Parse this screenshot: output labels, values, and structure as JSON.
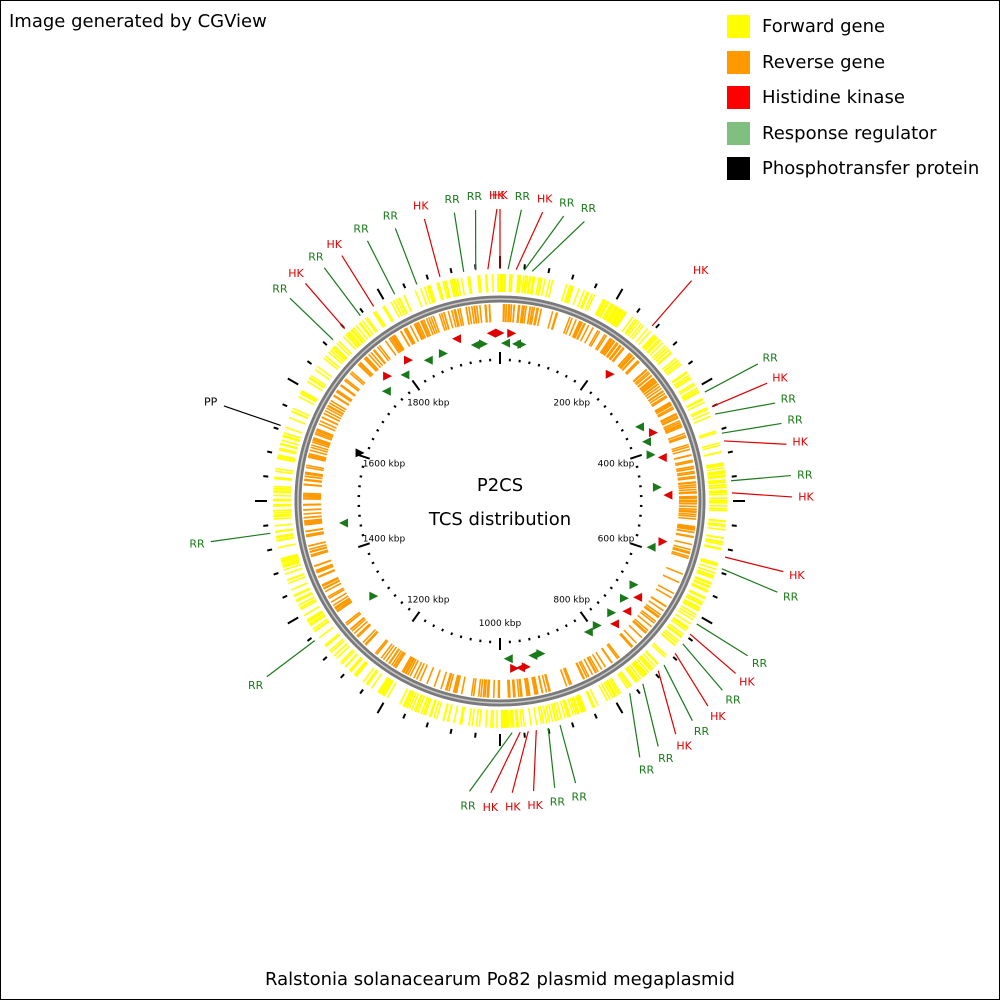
{
  "credit": "Image generated by CGView",
  "legend": [
    {
      "label": "Forward gene",
      "color": "#ffff00"
    },
    {
      "label": "Reverse gene",
      "color": "#ff9900"
    },
    {
      "label": "Histidine kinase",
      "color": "#ff0000"
    },
    {
      "label": "Response regulator",
      "color": "#7fbf7f"
    },
    {
      "label": "Phosphotransfer protein",
      "color": "#000000"
    }
  ],
  "center": {
    "line1": "P2CS",
    "line2": "TCS distribution"
  },
  "caption": "Ralstonia solanacearum Po82 plasmid megaplasmid",
  "colors": {
    "forward": "#ffff00",
    "reverse": "#ff9900",
    "hk": "#e00000",
    "rr": "#1a7a1a",
    "pp": "#000000",
    "backbone": "#7a7a7a"
  },
  "ruler_labels": [
    "200 kbp",
    "400 kbp",
    "600 kbp",
    "800 kbp",
    "1000 kbp",
    "1200 kbp",
    "1400 kbp",
    "1600 kbp",
    "1800 kbp"
  ],
  "features": [
    {
      "deg": 0,
      "label": "HK"
    },
    {
      "deg": 2,
      "label": "RR"
    },
    {
      "deg": 4,
      "label": "HK"
    },
    {
      "deg": 6,
      "label": "RR"
    },
    {
      "deg": 8,
      "label": "RR"
    },
    {
      "deg": -3,
      "label": "HK"
    },
    {
      "deg": -6,
      "label": "RR"
    },
    {
      "deg": -9,
      "label": "RR"
    },
    {
      "deg": 41,
      "label": "HK"
    },
    {
      "deg": 62,
      "label": "RR"
    },
    {
      "deg": 66,
      "label": "HK"
    },
    {
      "deg": 68,
      "label": "RR"
    },
    {
      "deg": 73,
      "label": "RR"
    },
    {
      "deg": 75,
      "label": "HK"
    },
    {
      "deg": 85,
      "label": "RR"
    },
    {
      "deg": 88,
      "label": "HK"
    },
    {
      "deg": 104,
      "label": "HK"
    },
    {
      "deg": 107,
      "label": "RR"
    },
    {
      "deg": 122,
      "label": "RR"
    },
    {
      "deg": 125,
      "label": "HK"
    },
    {
      "deg": 128,
      "label": "RR"
    },
    {
      "deg": 131,
      "label": "HK"
    },
    {
      "deg": 135,
      "label": "RR"
    },
    {
      "deg": 137,
      "label": "HK"
    },
    {
      "deg": 142,
      "label": "RR"
    },
    {
      "deg": 146,
      "label": "RR"
    },
    {
      "deg": 165,
      "label": "RR"
    },
    {
      "deg": 168,
      "label": "RR"
    },
    {
      "deg": 171,
      "label": "HK"
    },
    {
      "deg": 173,
      "label": "HK"
    },
    {
      "deg": 175,
      "label": "HK"
    },
    {
      "deg": 177,
      "label": "RR"
    },
    {
      "deg": 233,
      "label": "RR"
    },
    {
      "deg": 262,
      "label": "RR"
    },
    {
      "deg": 289,
      "label": "PP"
    },
    {
      "deg": 314,
      "label": "RR"
    },
    {
      "deg": 318,
      "label": "HK"
    },
    {
      "deg": 323,
      "label": "RR"
    },
    {
      "deg": 327,
      "label": "HK"
    },
    {
      "deg": 333,
      "label": "RR"
    },
    {
      "deg": 339,
      "label": "RR"
    },
    {
      "deg": 345,
      "label": "HK"
    }
  ]
}
